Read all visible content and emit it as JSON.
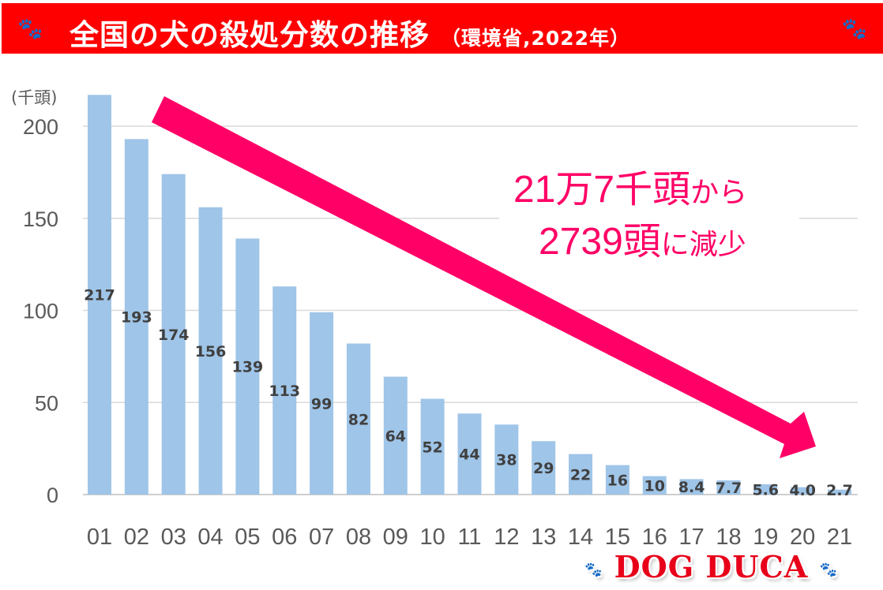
{
  "header": {
    "title": "全国の犬の殺処分数の推移",
    "subtitle": "（環境省,2022年）",
    "paw_icon": "paw-icon"
  },
  "logo": {
    "text": "DOG DUCA"
  },
  "annotation": {
    "line1_big": "21万7千頭",
    "line1_small": "から",
    "line2_big": "2739頭",
    "line2_small": "に減少",
    "color": "#ff0066"
  },
  "chart_data": {
    "type": "bar",
    "title": "全国の犬の殺処分数の推移",
    "ylabel": "(千頭)",
    "xlabel": "",
    "categories": [
      "01",
      "02",
      "03",
      "04",
      "05",
      "06",
      "07",
      "08",
      "09",
      "10",
      "11",
      "12",
      "13",
      "14",
      "15",
      "16",
      "17",
      "18",
      "19",
      "20",
      "21"
    ],
    "values": [
      217,
      193,
      174,
      156,
      139,
      113,
      99,
      82,
      64,
      52,
      44,
      38,
      29,
      22,
      16,
      10,
      8.4,
      7.7,
      5.6,
      4.0,
      2.7
    ],
    "value_labels": [
      "217",
      "193",
      "174",
      "156",
      "139",
      "113",
      "99",
      "82",
      "64",
      "52",
      "44",
      "38",
      "29",
      "22",
      "16",
      "10",
      "8.4",
      "7.7",
      "5.6",
      "4.0",
      "2.7"
    ],
    "ylim": [
      0,
      200
    ],
    "yticks": [
      "0",
      "50",
      "100",
      "150",
      "200"
    ],
    "grid": true,
    "bar_color": "#9fc5e8",
    "trend_arrow_color": "#ff0066"
  }
}
